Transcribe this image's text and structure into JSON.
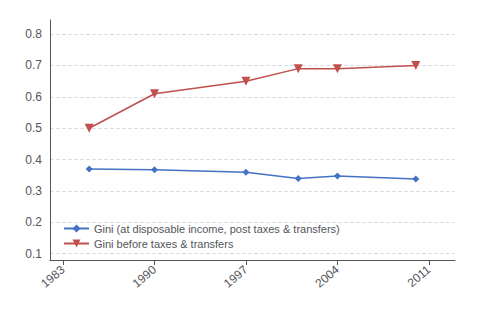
{
  "chart_data": {
    "type": "line",
    "x": [
      1985,
      1990,
      1997,
      2001,
      2004,
      2010
    ],
    "series": [
      {
        "name": "Gini (at disposable income, post taxes & transfers)",
        "color": "#4472C4",
        "marker": "diamond",
        "values": [
          0.37,
          0.368,
          0.36,
          0.34,
          0.348,
          0.338
        ]
      },
      {
        "name": "Gini before taxes & transfers",
        "color": "#C0504D",
        "marker": "triangle_down",
        "values": [
          0.5,
          0.61,
          0.65,
          0.69,
          0.69,
          0.7
        ]
      }
    ],
    "xlim": [
      1982,
      2013
    ],
    "xticks": [
      1983,
      1990,
      1997,
      2004,
      2011
    ],
    "ylim": [
      0.08,
      0.845
    ],
    "yticks": [
      0.1,
      0.2,
      0.3,
      0.4,
      0.5,
      0.6,
      0.7,
      0.8
    ],
    "grid": true,
    "legend": "lower left"
  }
}
